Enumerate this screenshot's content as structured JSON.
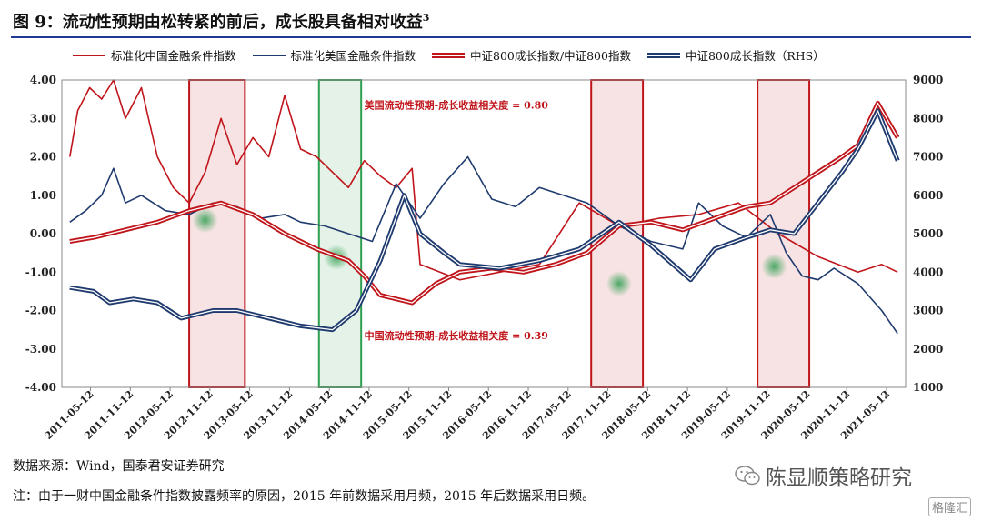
{
  "title": "图 9：流动性预期由松转紧的前后，成长股具备相对收益",
  "title_sup": "3",
  "legend": [
    {
      "label": "标准化中国金融条件指数",
      "style": "red"
    },
    {
      "label": "标准化美国金融条件指数",
      "style": "navy"
    },
    {
      "label": "中证800成长指数/中证800指数",
      "style": "red2"
    },
    {
      "label": "中证800成长指数（RHS）",
      "style": "navy2"
    }
  ],
  "colors": {
    "red": "#c0151b",
    "navy": "#1f3a6e",
    "green": "#2e9e4f"
  },
  "chart_data": {
    "type": "line",
    "ylim_left": [
      -4,
      4
    ],
    "ylim_right": [
      1000,
      9000
    ],
    "left_ticks": [
      "4.00",
      "3.00",
      "2.00",
      "1.00",
      "0.00",
      "-1.00",
      "-2.00",
      "-3.00",
      "-4.00"
    ],
    "right_ticks": [
      "9000",
      "8000",
      "7000",
      "6000",
      "5000",
      "4000",
      "3000",
      "2000",
      "1000"
    ],
    "x_range": [
      2011.0,
      2021.6
    ],
    "x_ticks": [
      {
        "x": 2011.36,
        "label": "2011-05-12"
      },
      {
        "x": 2011.86,
        "label": "2011-11-12"
      },
      {
        "x": 2012.36,
        "label": "2012-05-12"
      },
      {
        "x": 2012.86,
        "label": "2012-11-12"
      },
      {
        "x": 2013.36,
        "label": "2013-05-12"
      },
      {
        "x": 2013.86,
        "label": "2013-11-12"
      },
      {
        "x": 2014.36,
        "label": "2014-05-12"
      },
      {
        "x": 2014.86,
        "label": "2014-11-12"
      },
      {
        "x": 2015.36,
        "label": "2015-05-12"
      },
      {
        "x": 2015.86,
        "label": "2015-11-12"
      },
      {
        "x": 2016.36,
        "label": "2016-05-12"
      },
      {
        "x": 2016.86,
        "label": "2016-11-12"
      },
      {
        "x": 2017.36,
        "label": "2017-05-12"
      },
      {
        "x": 2017.86,
        "label": "2017-11-12"
      },
      {
        "x": 2018.36,
        "label": "2018-05-12"
      },
      {
        "x": 2018.86,
        "label": "2018-11-12"
      },
      {
        "x": 2019.36,
        "label": "2019-05-12"
      },
      {
        "x": 2019.86,
        "label": "2019-11-12"
      },
      {
        "x": 2020.36,
        "label": "2020-05-12"
      },
      {
        "x": 2020.86,
        "label": "2020-11-12"
      },
      {
        "x": 2021.36,
        "label": "2021-05-12"
      }
    ],
    "shaded_periods": [
      {
        "x0": 2012.6,
        "x1": 2013.3,
        "color": "red"
      },
      {
        "x0": 2014.23,
        "x1": 2014.76,
        "color": "green"
      },
      {
        "x0": 2017.65,
        "x1": 2018.3,
        "color": "red"
      },
      {
        "x0": 2019.74,
        "x1": 2020.39,
        "color": "red"
      }
    ],
    "highlights": [
      {
        "x": 2012.8,
        "y": 0.35
      },
      {
        "x": 2014.45,
        "y": -0.62
      },
      {
        "x": 2018.0,
        "y": -1.3
      },
      {
        "x": 2019.95,
        "y": -0.85
      }
    ],
    "annotations": [
      {
        "x": 2014.8,
        "y": 3.25,
        "text": "美国流动性预期-成长收益相关度 = 0.80"
      },
      {
        "x": 2014.8,
        "y": -2.75,
        "text": "中国流动性预期-成长收益相关度 = 0.39"
      }
    ],
    "series": [
      {
        "name": "标准化中国金融条件指数",
        "axis": "left",
        "style": "red",
        "x": [
          2011.1,
          2011.2,
          2011.35,
          2011.5,
          2011.65,
          2011.8,
          2012.0,
          2012.2,
          2012.4,
          2012.6,
          2012.8,
          2013.0,
          2013.2,
          2013.4,
          2013.6,
          2013.8,
          2014.0,
          2014.2,
          2014.4,
          2014.6,
          2014.8,
          2015.0,
          2015.2,
          2015.4,
          2015.5,
          2016.0,
          2017.0,
          2017.5,
          2018.0,
          2018.5,
          2019.0,
          2019.5,
          2020.0,
          2020.5,
          2021.0,
          2021.3,
          2021.5
        ],
        "y": [
          2.0,
          3.2,
          3.8,
          3.5,
          4.0,
          3.0,
          3.8,
          2.0,
          1.2,
          0.8,
          1.6,
          3.0,
          1.8,
          2.5,
          2.0,
          3.6,
          2.2,
          2.0,
          1.6,
          1.2,
          1.9,
          1.5,
          1.2,
          1.7,
          -0.8,
          -1.2,
          -0.8,
          0.8,
          0.2,
          0.4,
          0.5,
          0.8,
          0.0,
          -0.6,
          -1.0,
          -0.8,
          -1.0
        ]
      },
      {
        "name": "标准化美国金融条件指数",
        "axis": "left",
        "style": "navy",
        "x": [
          2011.1,
          2011.3,
          2011.5,
          2011.65,
          2011.8,
          2012.0,
          2012.3,
          2012.6,
          2012.9,
          2013.2,
          2013.5,
          2013.8,
          2014.0,
          2014.3,
          2014.6,
          2014.9,
          2015.2,
          2015.5,
          2015.8,
          2016.1,
          2016.4,
          2016.7,
          2017.0,
          2017.3,
          2017.6,
          2018.0,
          2018.4,
          2018.8,
          2019.0,
          2019.3,
          2019.6,
          2019.9,
          2020.1,
          2020.3,
          2020.5,
          2020.7,
          2021.0,
          2021.3,
          2021.5
        ],
        "y": [
          0.3,
          0.6,
          1.0,
          1.7,
          0.8,
          1.0,
          0.6,
          0.5,
          0.8,
          0.7,
          0.4,
          0.5,
          0.3,
          0.2,
          0.0,
          -0.2,
          1.3,
          0.4,
          1.3,
          2.0,
          0.9,
          0.7,
          1.2,
          1.0,
          0.8,
          0.2,
          -0.2,
          -0.4,
          0.8,
          0.2,
          -0.1,
          0.5,
          -0.5,
          -1.1,
          -1.2,
          -0.9,
          -1.3,
          -2.0,
          -2.6
        ]
      },
      {
        "name": "中证800成长指数/中证800指数",
        "axis": "left",
        "style": "red2",
        "x": [
          2011.1,
          2011.4,
          2011.8,
          2012.2,
          2012.6,
          2013.0,
          2013.4,
          2013.8,
          2014.2,
          2014.6,
          2014.8,
          2015.0,
          2015.4,
          2015.7,
          2016.0,
          2016.4,
          2016.8,
          2017.2,
          2017.6,
          2018.0,
          2018.4,
          2018.8,
          2019.2,
          2019.6,
          2019.9,
          2020.2,
          2020.5,
          2020.8,
          2021.0,
          2021.25,
          2021.5
        ],
        "y": [
          -0.2,
          -0.1,
          0.1,
          0.3,
          0.6,
          0.8,
          0.5,
          0.0,
          -0.4,
          -0.7,
          -1.1,
          -1.6,
          -1.8,
          -1.3,
          -1.0,
          -0.9,
          -1.0,
          -0.8,
          -0.5,
          0.2,
          0.3,
          0.1,
          0.4,
          0.7,
          0.8,
          1.2,
          1.6,
          2.0,
          2.3,
          3.4,
          2.5
        ]
      },
      {
        "name": "中证800成长指数（RHS）",
        "axis": "right",
        "style": "navy2",
        "x": [
          2011.1,
          2011.4,
          2011.6,
          2011.9,
          2012.2,
          2012.5,
          2012.9,
          2013.2,
          2013.6,
          2014.0,
          2014.4,
          2014.7,
          2015.0,
          2015.3,
          2015.5,
          2015.8,
          2016.0,
          2016.5,
          2017.0,
          2017.5,
          2018.0,
          2018.4,
          2018.9,
          2019.2,
          2019.6,
          2019.9,
          2020.2,
          2020.5,
          2020.8,
          2021.0,
          2021.25,
          2021.5
        ],
        "y": [
          3600,
          3500,
          3200,
          3300,
          3200,
          2800,
          3000,
          3000,
          2800,
          2600,
          2500,
          3000,
          4300,
          6000,
          5000,
          4500,
          4200,
          4100,
          4300,
          4600,
          5300,
          4700,
          3800,
          4600,
          4900,
          5100,
          5000,
          5800,
          6600,
          7200,
          8200,
          6900
        ]
      }
    ]
  },
  "source_text": "数据来源：Wind，国泰君安证券研究",
  "note_text": "注：由于一财中国金融条件指数披露频率的原因，2015 年前数据采用月频，2015 年后数据采用日频。",
  "wechat_label": "陈显顺策略研究",
  "watermark": "格隆汇"
}
